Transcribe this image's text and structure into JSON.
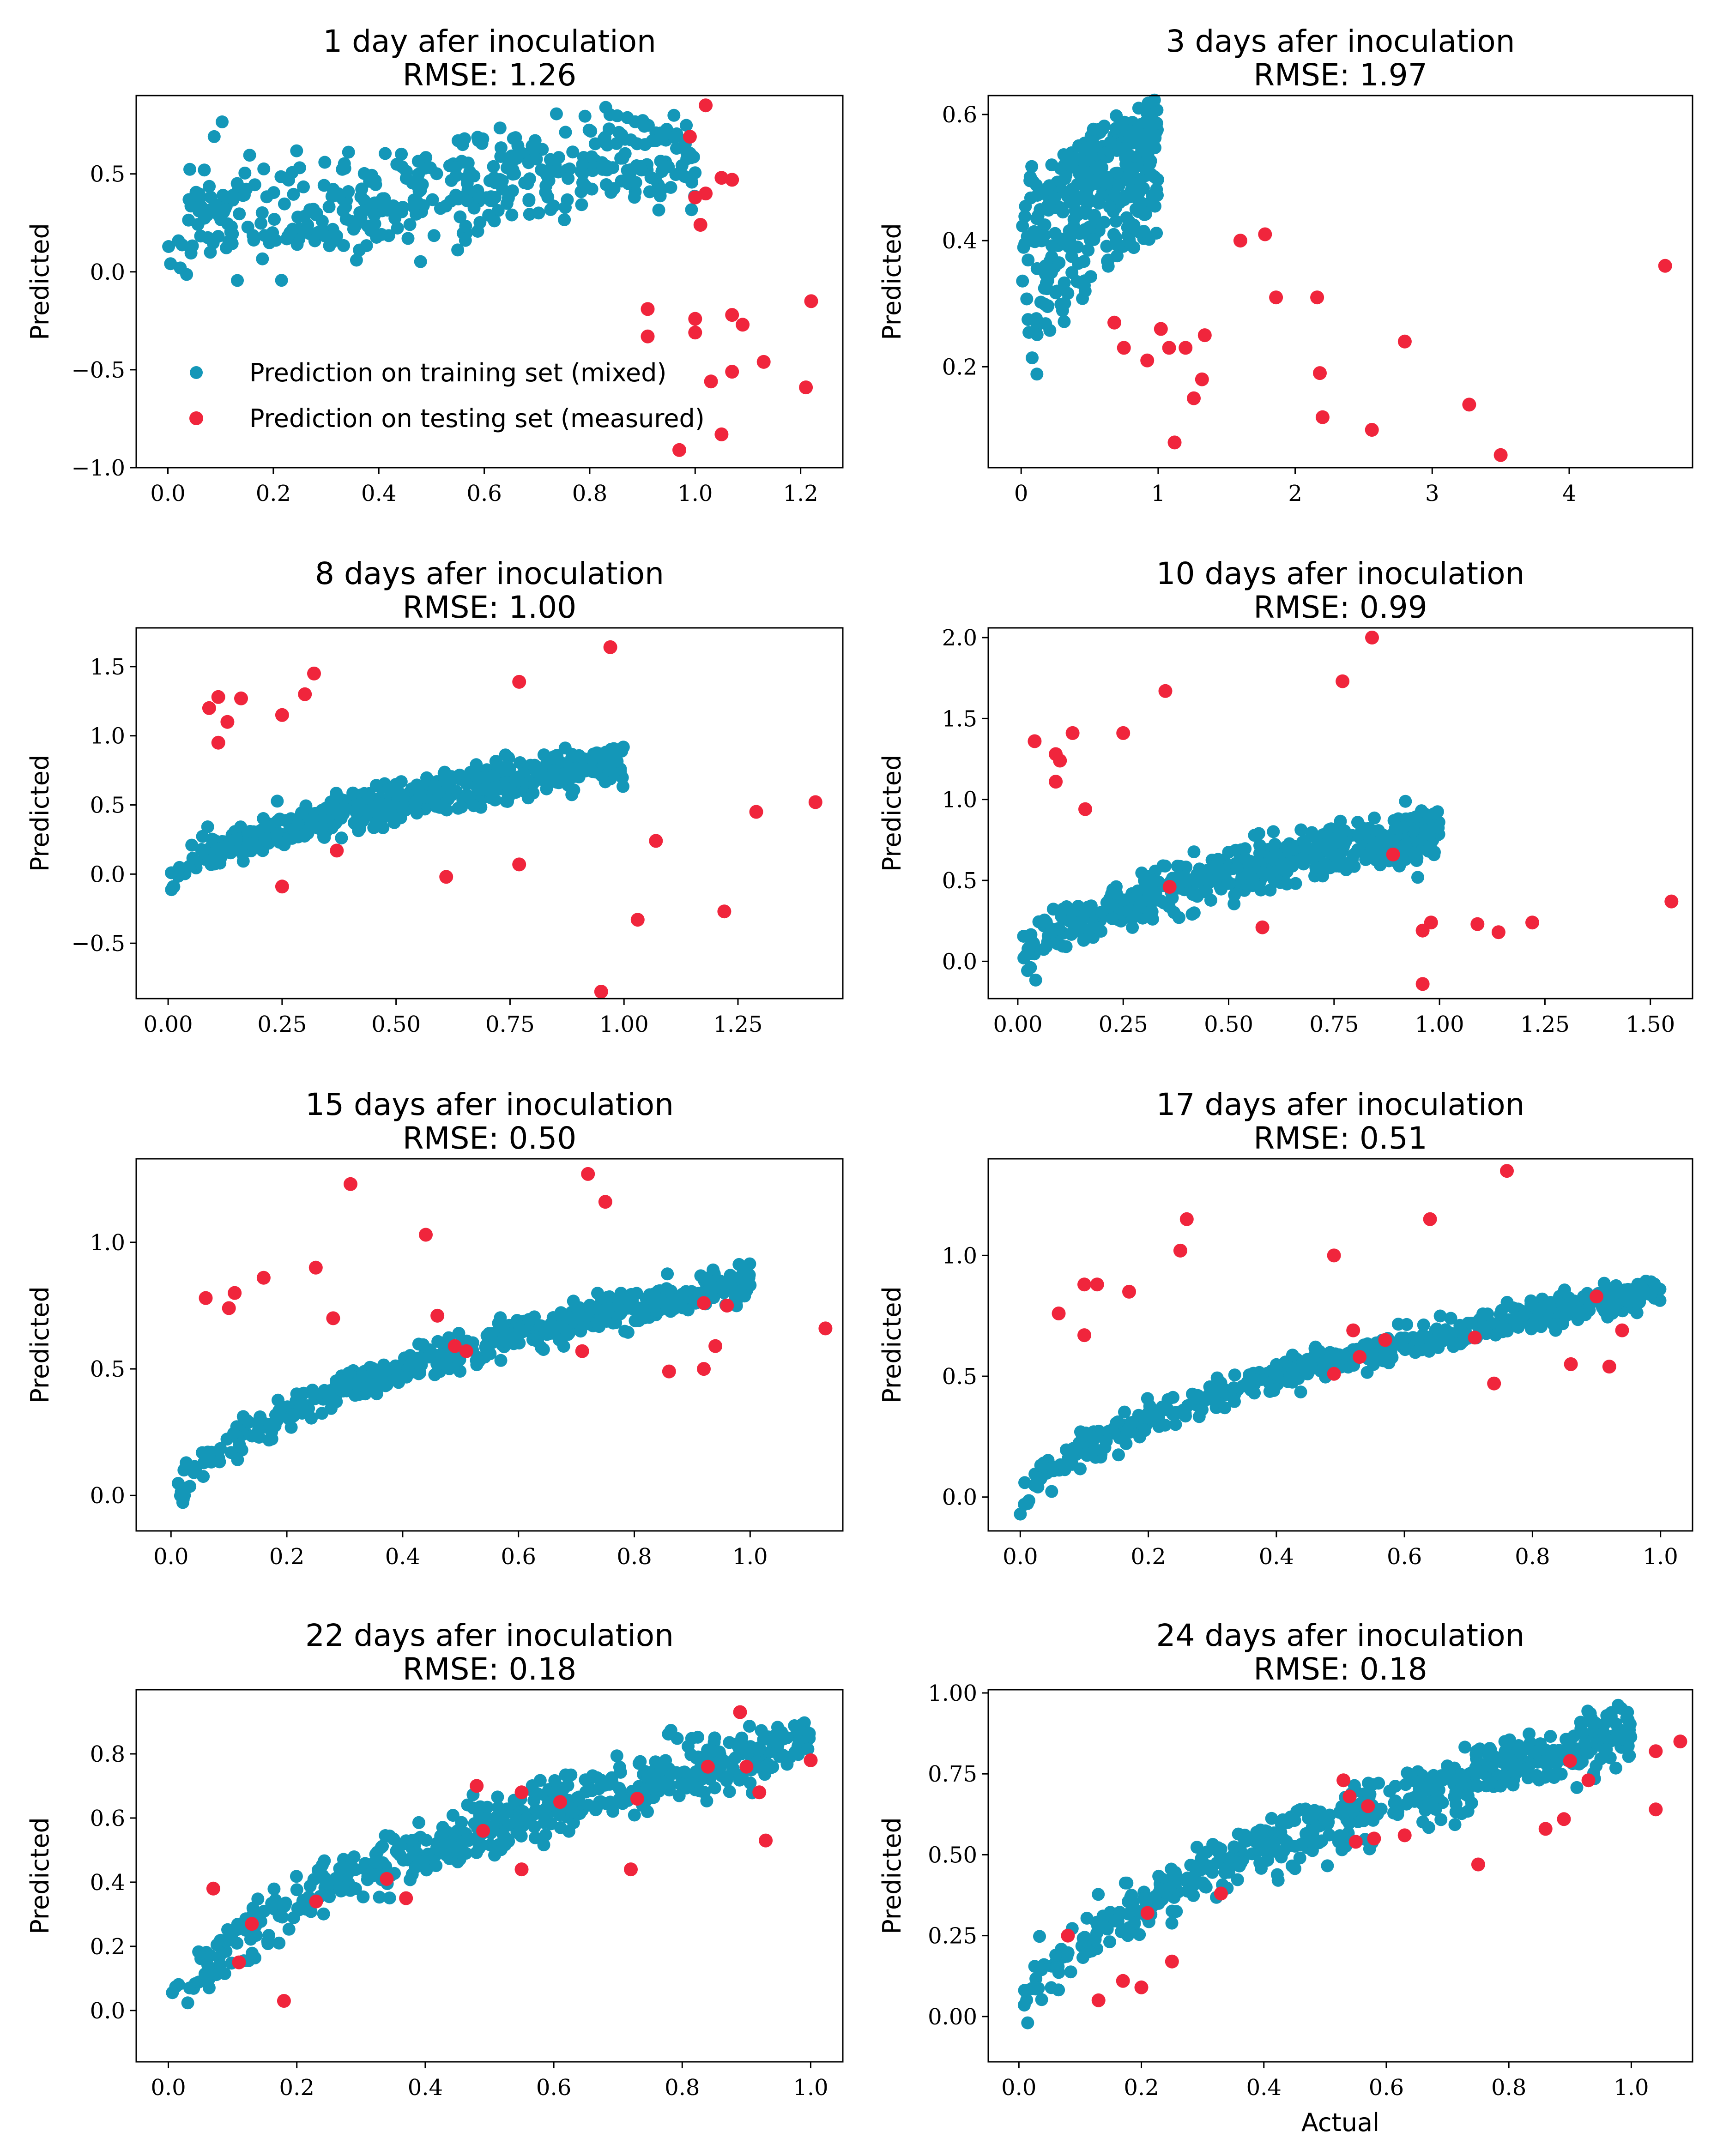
{
  "colors": {
    "train": "#1497b8",
    "test": "#f0253c"
  },
  "legend": {
    "train_label": "Prediction on training set (mixed)",
    "test_label": "Prediction on testing set (measured)"
  },
  "chart_data": [
    {
      "type": "scatter",
      "title": "1 day afer inoculation",
      "subtitle": "RMSE: 1.26",
      "xlabel": "",
      "ylabel": "Predicted",
      "xlim": [
        -0.06,
        1.28
      ],
      "ylim": [
        -1.0,
        0.9
      ],
      "xticks": [
        0.0,
        0.2,
        0.4,
        0.6,
        0.8,
        1.0,
        1.2
      ],
      "xtick_labels": [
        "0.0",
        "0.2",
        "0.4",
        "0.6",
        "0.8",
        "1.0",
        "1.2"
      ],
      "yticks": [
        -1.0,
        -0.5,
        0.0,
        0.5
      ],
      "ytick_labels": [
        "−1.0",
        "−0.5",
        "0.0",
        "0.5"
      ],
      "train": {
        "curve": "noise",
        "n": 420,
        "x": [
          0.0,
          1.0
        ],
        "a": 0.23,
        "b": 0.37,
        "noise": 0.14,
        "seed": 11
      },
      "test": [
        [
          1.02,
          0.85
        ],
        [
          0.99,
          0.69
        ],
        [
          1.05,
          0.48
        ],
        [
          1.07,
          0.47
        ],
        [
          1.02,
          0.4
        ],
        [
          1.0,
          0.38
        ],
        [
          1.01,
          0.24
        ],
        [
          0.91,
          -0.19
        ],
        [
          0.91,
          -0.33
        ],
        [
          1.0,
          -0.24
        ],
        [
          1.07,
          -0.22
        ],
        [
          1.09,
          -0.27
        ],
        [
          1.0,
          -0.31
        ],
        [
          1.13,
          -0.46
        ],
        [
          1.07,
          -0.51
        ],
        [
          1.03,
          -0.56
        ],
        [
          1.22,
          -0.15
        ],
        [
          1.21,
          -0.59
        ],
        [
          1.05,
          -0.83
        ],
        [
          0.97,
          -0.91
        ]
      ]
    },
    {
      "type": "scatter",
      "title": "3 days afer inoculation",
      "subtitle": "RMSE: 1.97",
      "xlabel": "",
      "ylabel": "Predicted",
      "xlim": [
        -0.24,
        4.9
      ],
      "ylim": [
        0.04,
        0.63
      ],
      "xticks": [
        0,
        1,
        2,
        3,
        4
      ],
      "xtick_labels": [
        "0",
        "1",
        "2",
        "3",
        "4"
      ],
      "yticks": [
        0.2,
        0.4,
        0.6
      ],
      "ytick_labels": [
        "0.2",
        "0.4",
        "0.6"
      ],
      "train": {
        "curve": "fan",
        "n": 360,
        "x": [
          0.0,
          1.0
        ],
        "noise": 0.04,
        "seed": 23
      },
      "test": [
        [
          0.68,
          0.27
        ],
        [
          0.75,
          0.23
        ],
        [
          0.92,
          0.21
        ],
        [
          1.02,
          0.26
        ],
        [
          1.08,
          0.23
        ],
        [
          1.2,
          0.23
        ],
        [
          1.12,
          0.08
        ],
        [
          1.26,
          0.15
        ],
        [
          1.32,
          0.18
        ],
        [
          1.34,
          0.25
        ],
        [
          1.6,
          0.4
        ],
        [
          1.78,
          0.41
        ],
        [
          1.86,
          0.31
        ],
        [
          2.16,
          0.31
        ],
        [
          2.18,
          0.19
        ],
        [
          2.2,
          0.12
        ],
        [
          2.56,
          0.1
        ],
        [
          2.8,
          0.24
        ],
        [
          3.27,
          0.14
        ],
        [
          3.5,
          0.06
        ],
        [
          4.7,
          0.36
        ]
      ]
    },
    {
      "type": "scatter",
      "title": "8 days afer inoculation",
      "subtitle": "RMSE: 1.00",
      "xlabel": "",
      "ylabel": "Predicted",
      "xlim": [
        -0.07,
        1.48
      ],
      "ylim": [
        -0.9,
        1.78
      ],
      "xticks": [
        0.0,
        0.25,
        0.5,
        0.75,
        1.0,
        1.25
      ],
      "xtick_labels": [
        "0.00",
        "0.25",
        "0.50",
        "0.75",
        "1.00",
        "1.25"
      ],
      "yticks": [
        -0.5,
        0.0,
        0.5,
        1.0,
        1.5
      ],
      "ytick_labels": [
        "−0.5",
        "0.0",
        "0.5",
        "1.0",
        "1.5"
      ],
      "train": {
        "curve": "sqrt",
        "n": 520,
        "x": [
          0.0,
          1.0
        ],
        "a": -0.15,
        "b": 0.95,
        "noise": 0.07,
        "seed": 37
      },
      "test": [
        [
          0.09,
          1.2
        ],
        [
          0.11,
          1.28
        ],
        [
          0.11,
          0.95
        ],
        [
          0.13,
          1.1
        ],
        [
          0.16,
          1.27
        ],
        [
          0.25,
          1.15
        ],
        [
          0.3,
          1.3
        ],
        [
          0.32,
          1.45
        ],
        [
          0.25,
          -0.09
        ],
        [
          0.37,
          0.17
        ],
        [
          0.61,
          -0.02
        ],
        [
          0.77,
          0.07
        ],
        [
          0.77,
          1.39
        ],
        [
          0.97,
          1.64
        ],
        [
          0.95,
          -0.85
        ],
        [
          1.03,
          -0.33
        ],
        [
          1.07,
          0.24
        ],
        [
          1.22,
          -0.27
        ],
        [
          1.29,
          0.45
        ],
        [
          1.42,
          0.52
        ]
      ]
    },
    {
      "type": "scatter",
      "title": "10 days afer inoculation",
      "subtitle": "RMSE: 0.99",
      "xlabel": "",
      "ylabel": "Predicted",
      "xlim": [
        -0.07,
        1.6
      ],
      "ylim": [
        -0.23,
        2.06
      ],
      "xticks": [
        0.0,
        0.25,
        0.5,
        0.75,
        1.0,
        1.25,
        1.5
      ],
      "xtick_labels": [
        "0.00",
        "0.25",
        "0.50",
        "0.75",
        "1.00",
        "1.25",
        "1.50"
      ],
      "yticks": [
        0.0,
        0.5,
        1.0,
        1.5,
        2.0
      ],
      "ytick_labels": [
        "0.0",
        "0.5",
        "1.0",
        "1.5",
        "2.0"
      ],
      "train": {
        "curve": "sqrt",
        "n": 520,
        "x": [
          0.0,
          1.0
        ],
        "a": -0.1,
        "b": 0.9,
        "noise": 0.08,
        "seed": 41
      },
      "test": [
        [
          0.04,
          1.36
        ],
        [
          0.09,
          1.28
        ],
        [
          0.09,
          1.11
        ],
        [
          0.1,
          1.24
        ],
        [
          0.13,
          1.41
        ],
        [
          0.16,
          0.94
        ],
        [
          0.25,
          1.41
        ],
        [
          0.36,
          0.46
        ],
        [
          0.35,
          1.67
        ],
        [
          0.58,
          0.21
        ],
        [
          0.77,
          1.73
        ],
        [
          0.84,
          2.0
        ],
        [
          0.89,
          0.66
        ],
        [
          0.96,
          0.19
        ],
        [
          0.96,
          -0.14
        ],
        [
          0.98,
          0.24
        ],
        [
          1.09,
          0.23
        ],
        [
          1.14,
          0.18
        ],
        [
          1.22,
          0.24
        ],
        [
          1.55,
          0.37
        ]
      ]
    },
    {
      "type": "scatter",
      "title": "15 days afer inoculation",
      "subtitle": "RMSE: 0.50",
      "xlabel": "",
      "ylabel": "Predicted",
      "xlim": [
        -0.06,
        1.16
      ],
      "ylim": [
        -0.14,
        1.33
      ],
      "xticks": [
        0.0,
        0.2,
        0.4,
        0.6,
        0.8,
        1.0
      ],
      "xtick_labels": [
        "0.0",
        "0.2",
        "0.4",
        "0.6",
        "0.8",
        "1.0"
      ],
      "yticks": [
        0.0,
        0.5,
        1.0
      ],
      "ytick_labels": [
        "0.0",
        "0.5",
        "1.0"
      ],
      "train": {
        "curve": "sqrt",
        "n": 520,
        "x": [
          0.0,
          1.0
        ],
        "a": -0.1,
        "b": 0.95,
        "noise": 0.035,
        "seed": 53
      },
      "test": [
        [
          0.06,
          0.78
        ],
        [
          0.1,
          0.74
        ],
        [
          0.11,
          0.8
        ],
        [
          0.16,
          0.86
        ],
        [
          0.25,
          0.9
        ],
        [
          0.28,
          0.7
        ],
        [
          0.31,
          1.23
        ],
        [
          0.44,
          1.03
        ],
        [
          0.46,
          0.71
        ],
        [
          0.49,
          0.59
        ],
        [
          0.51,
          0.57
        ],
        [
          0.71,
          0.57
        ],
        [
          0.72,
          1.27
        ],
        [
          0.75,
          1.16
        ],
        [
          0.86,
          0.49
        ],
        [
          0.92,
          0.5
        ],
        [
          0.92,
          0.76
        ],
        [
          0.94,
          0.59
        ],
        [
          0.96,
          0.75
        ],
        [
          1.13,
          0.66
        ]
      ]
    },
    {
      "type": "scatter",
      "title": "17 days afer inoculation",
      "subtitle": "RMSE: 0.51",
      "xlabel": "",
      "ylabel": "Predicted",
      "xlim": [
        -0.05,
        1.05
      ],
      "ylim": [
        -0.14,
        1.4
      ],
      "xticks": [
        0.0,
        0.2,
        0.4,
        0.6,
        0.8,
        1.0
      ],
      "xtick_labels": [
        "0.0",
        "0.2",
        "0.4",
        "0.6",
        "0.8",
        "1.0"
      ],
      "yticks": [
        0.0,
        0.5,
        1.0
      ],
      "ytick_labels": [
        "0.0",
        "0.5",
        "1.0"
      ],
      "train": {
        "curve": "sqrt",
        "n": 520,
        "x": [
          0.0,
          1.0
        ],
        "a": -0.1,
        "b": 0.95,
        "noise": 0.03,
        "seed": 67
      },
      "test": [
        [
          0.06,
          0.76
        ],
        [
          0.1,
          0.88
        ],
        [
          0.1,
          0.67
        ],
        [
          0.12,
          0.88
        ],
        [
          0.17,
          0.85
        ],
        [
          0.25,
          1.02
        ],
        [
          0.26,
          1.15
        ],
        [
          0.49,
          1.0
        ],
        [
          0.49,
          0.51
        ],
        [
          0.52,
          0.69
        ],
        [
          0.53,
          0.58
        ],
        [
          0.57,
          0.65
        ],
        [
          0.64,
          1.15
        ],
        [
          0.71,
          0.66
        ],
        [
          0.74,
          0.47
        ],
        [
          0.76,
          1.35
        ],
        [
          0.86,
          0.55
        ],
        [
          0.9,
          0.83
        ],
        [
          0.92,
          0.54
        ],
        [
          0.94,
          0.69
        ]
      ]
    },
    {
      "type": "scatter",
      "title": "22 days afer inoculation",
      "subtitle": "RMSE: 0.18",
      "xlabel": "",
      "ylabel": "Predicted",
      "xlim": [
        -0.05,
        1.05
      ],
      "ylim": [
        -0.16,
        1.0
      ],
      "xticks": [
        0.0,
        0.2,
        0.4,
        0.6,
        0.8,
        1.0
      ],
      "xtick_labels": [
        "0.0",
        "0.2",
        "0.4",
        "0.6",
        "0.8",
        "1.0"
      ],
      "yticks": [
        0.0,
        0.2,
        0.4,
        0.6,
        0.8
      ],
      "ytick_labels": [
        "0.0",
        "0.2",
        "0.4",
        "0.6",
        "0.8"
      ],
      "train": {
        "curve": "sqrt",
        "n": 520,
        "x": [
          0.0,
          1.0
        ],
        "a": -0.08,
        "b": 0.92,
        "noise": 0.045,
        "seed": 79
      },
      "test": [
        [
          0.07,
          0.38
        ],
        [
          0.11,
          0.15
        ],
        [
          0.13,
          0.27
        ],
        [
          0.18,
          0.03
        ],
        [
          0.23,
          0.34
        ],
        [
          0.34,
          0.41
        ],
        [
          0.37,
          0.35
        ],
        [
          0.48,
          0.7
        ],
        [
          0.49,
          0.56
        ],
        [
          0.55,
          0.68
        ],
        [
          0.55,
          0.44
        ],
        [
          0.61,
          0.65
        ],
        [
          0.72,
          0.44
        ],
        [
          0.73,
          0.66
        ],
        [
          0.84,
          0.76
        ],
        [
          0.89,
          0.93
        ],
        [
          0.9,
          0.76
        ],
        [
          0.92,
          0.68
        ],
        [
          0.93,
          0.53
        ],
        [
          1.0,
          0.78
        ]
      ]
    },
    {
      "type": "scatter",
      "title": "24 days afer inoculation",
      "subtitle": "RMSE: 0.18",
      "xlabel": "Actual",
      "ylabel": "Predicted",
      "xlim": [
        -0.05,
        1.1
      ],
      "ylim": [
        -0.14,
        1.01
      ],
      "xticks": [
        0.0,
        0.2,
        0.4,
        0.6,
        0.8,
        1.0
      ],
      "xtick_labels": [
        "0.0",
        "0.2",
        "0.4",
        "0.6",
        "0.8",
        "1.0"
      ],
      "yticks": [
        0.0,
        0.25,
        0.5,
        0.75,
        1.0
      ],
      "ytick_labels": [
        "0.00",
        "0.25",
        "0.50",
        "0.75",
        "1.00"
      ],
      "train": {
        "curve": "sqrt",
        "n": 520,
        "x": [
          0.0,
          1.0
        ],
        "a": -0.08,
        "b": 0.95,
        "noise": 0.05,
        "seed": 97
      },
      "test": [
        [
          0.08,
          0.25
        ],
        [
          0.13,
          0.05
        ],
        [
          0.17,
          0.11
        ],
        [
          0.2,
          0.09
        ],
        [
          0.21,
          0.32
        ],
        [
          0.25,
          0.17
        ],
        [
          0.33,
          0.38
        ],
        [
          0.53,
          0.73
        ],
        [
          0.54,
          0.68
        ],
        [
          0.55,
          0.54
        ],
        [
          0.57,
          0.65
        ],
        [
          0.58,
          0.55
        ],
        [
          0.63,
          0.56
        ],
        [
          0.75,
          0.47
        ],
        [
          0.86,
          0.58
        ],
        [
          0.89,
          0.61
        ],
        [
          0.9,
          0.79
        ],
        [
          0.93,
          0.73
        ],
        [
          1.04,
          0.82
        ],
        [
          1.04,
          0.64
        ],
        [
          1.08,
          0.85
        ]
      ]
    }
  ]
}
